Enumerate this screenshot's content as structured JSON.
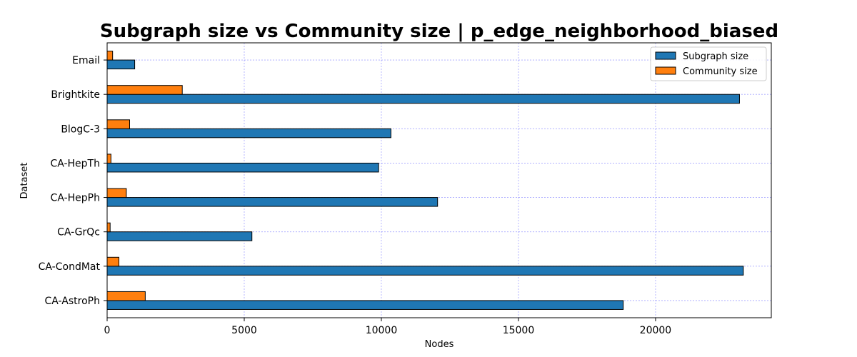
{
  "chart_data": {
    "type": "bar",
    "orientation": "horizontal",
    "title": "Subgraph size vs Community size | p_edge_neighborhood_biased",
    "xlabel": "Nodes",
    "ylabel": "Dataset",
    "categories": [
      "Email",
      "Brightkite",
      "BlogC-3",
      "CA-HepTh",
      "CA-HepPh",
      "CA-GrQc",
      "CA-CondMat",
      "CA-AstroPh"
    ],
    "series": [
      {
        "name": "Subgraph size",
        "color": "#1f77b4",
        "values": [
          1005,
          23060,
          10350,
          9900,
          12050,
          5280,
          23200,
          18820
        ]
      },
      {
        "name": "Community size",
        "color": "#ff7f0e",
        "values": [
          200,
          2740,
          820,
          140,
          700,
          110,
          430,
          1390
        ]
      }
    ],
    "xlim": [
      0,
      24220
    ],
    "xticks": [
      0,
      5000,
      10000,
      15000,
      20000
    ],
    "grid": true,
    "grid_color": "#0000ff",
    "legend_position": "top-right"
  }
}
